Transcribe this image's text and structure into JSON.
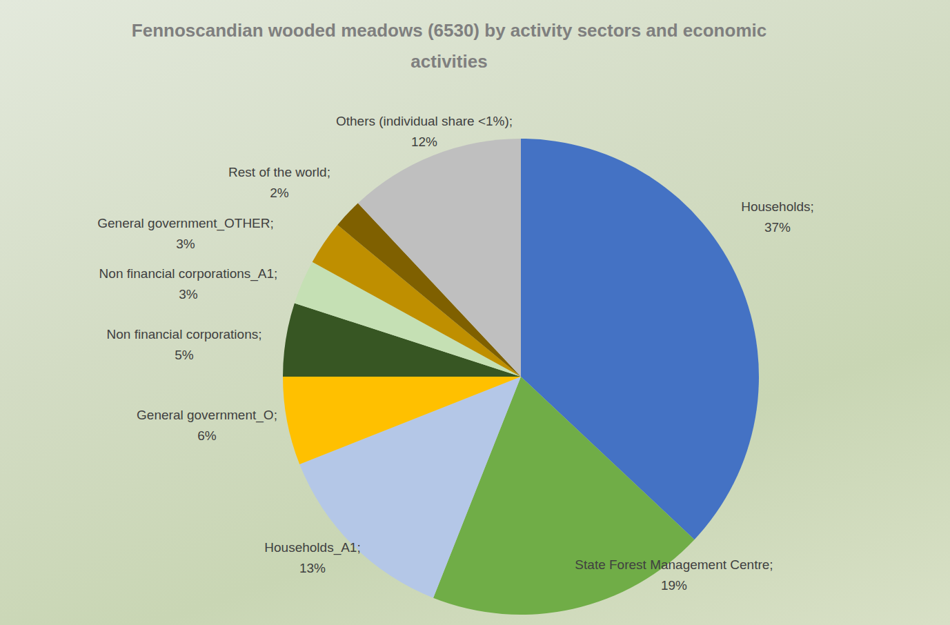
{
  "chart_data": {
    "type": "pie",
    "title": "Fennoscandian wooded meadows (6530) by activity sectors and economic activities",
    "categories": [
      "Households;",
      "State Forest Management Centre;",
      "Households_A1;",
      "General government_O;",
      "Non financial corporations;",
      "Non financial corporations_A1;",
      "General government_OTHER;",
      "Rest of the world;",
      "Others (individual share <1%);"
    ],
    "values": [
      37,
      19,
      13,
      6,
      5,
      3,
      3,
      2,
      12
    ],
    "value_labels": [
      "37%",
      "19%",
      "13%",
      "6%",
      "5%",
      "3%",
      "3%",
      "2%",
      "12%"
    ],
    "colors": [
      "#4472c4",
      "#70ad47",
      "#b4c7e7",
      "#ffc000",
      "#375623",
      "#c5e0b4",
      "#bf8f00",
      "#7f6000",
      "#bfbfbf"
    ],
    "data_labels": true
  }
}
